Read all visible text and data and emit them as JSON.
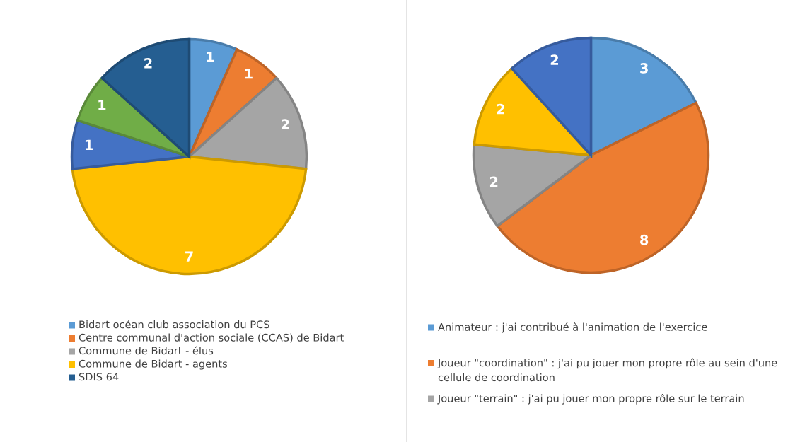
{
  "chart_data": [
    {
      "type": "pie",
      "categories": [
        "Bidart océan club association du PCS",
        "Centre communal d'action sociale (CCAS) de Bidart",
        "Commune de Bidart - élus",
        "Commune de Bidart - agents",
        null,
        null,
        "SDIS 64"
      ],
      "values": [
        1,
        1,
        2,
        7,
        1,
        1,
        2
      ],
      "colors": [
        "#5b9bd5",
        "#ed7d31",
        "#a5a5a5",
        "#ffc000",
        "#4472c4",
        "#70ad47",
        "#255e91"
      ],
      "data_labels": true,
      "legend": "bottom"
    },
    {
      "type": "pie",
      "categories": [
        "Animateur : j'ai contribué à l'animation de l'exercice",
        "Joueur \"coordination\" : j'ai pu jouer mon propre rôle au sein d'une cellule de coordination",
        "Joueur \"terrain\" : j'ai pu jouer mon propre rôle sur le terrain",
        null,
        null
      ],
      "values": [
        3,
        8,
        2,
        2,
        2
      ],
      "colors": [
        "#5b9bd5",
        "#ed7d31",
        "#a5a5a5",
        "#ffc000",
        "#4472c4"
      ],
      "data_labels": true,
      "legend": "bottom"
    }
  ]
}
